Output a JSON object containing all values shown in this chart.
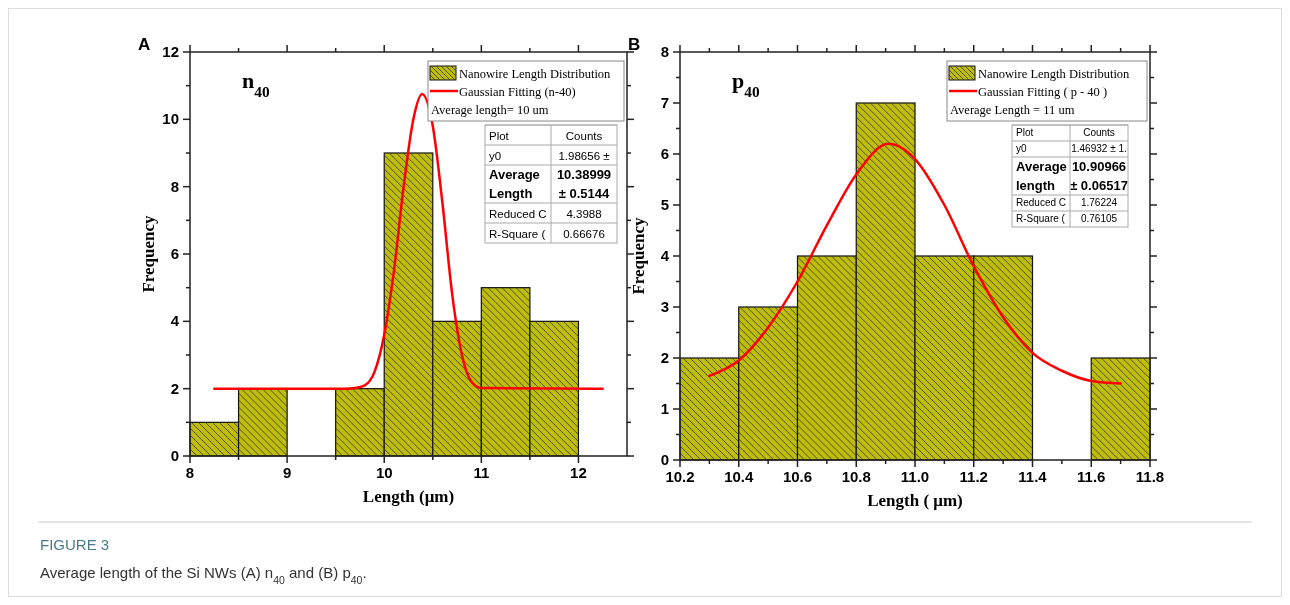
{
  "chart_data": [
    {
      "type": "histogram",
      "title": "A",
      "subtitle": "n$_{40}$",
      "xlabel": "Length (μm)",
      "ylabel": "Frequency",
      "bins": [
        8,
        8.5,
        9,
        9.5,
        10,
        10.5,
        11,
        11.5,
        12
      ],
      "series": [
        {
          "name": "Nanowire Length Distribution",
          "color": "#bdbd0a",
          "values": [
            1,
            2,
            0,
            2,
            9,
            4,
            5,
            4
          ]
        },
        {
          "name": "Gaussian Fitting (n-40)",
          "type": "line",
          "color": "#ff0000",
          "x": [
            8.25,
            9.6,
            9.7,
            9.8,
            9.9,
            10.0,
            10.1,
            10.2,
            10.3,
            10.39,
            10.5,
            10.6,
            10.7,
            10.8,
            10.9,
            11.0,
            12.25
          ],
          "values": [
            2,
            2,
            2.02,
            2.1,
            2.5,
            3.6,
            5.5,
            8.0,
            10.0,
            10.75,
            9.8,
            7.5,
            4.8,
            3.0,
            2.2,
            2.02,
            2
          ]
        }
      ],
      "xlim": [
        8,
        12.5
      ],
      "ylim": [
        0,
        12
      ],
      "xticks": [
        8,
        {
          "value": 8.5,
          "label": null
        },
        9,
        {
          "value": 9.5,
          "label": null
        },
        10,
        {
          "value": 10.5,
          "label": null
        },
        11,
        {
          "value": 11.5,
          "label": null
        },
        12
      ],
      "yticks": [
        0,
        {
          "value": 1,
          "label": null
        },
        2,
        {
          "value": 3,
          "label": null
        },
        4,
        {
          "value": 5,
          "label": null
        },
        6,
        {
          "value": 7,
          "label": null
        },
        8,
        {
          "value": 9,
          "label": null
        },
        10,
        {
          "value": 11,
          "label": null
        },
        12
      ],
      "legend": "top right",
      "annotations": [
        "Average length= 10 um",
        "Plot",
        "Counts",
        "y0",
        "1.98656 ±",
        "Average",
        "10.38999",
        "Length",
        "± 0.5144",
        "Reduced C",
        "4.3988",
        "R-Square (",
        "0.66676"
      ]
    },
    {
      "type": "histogram",
      "title": "B",
      "subtitle": "p$_{40}$",
      "xlabel": "Length ( μm)",
      "ylabel": "Frequency",
      "bins": [
        10.2,
        10.4,
        10.6,
        10.8,
        11.0,
        11.2,
        11.4,
        11.6,
        11.8
      ],
      "series": [
        {
          "name": "Nanowire Length Distribution",
          "color": "#bdbd0a",
          "values": [
            2,
            3,
            4,
            7,
            4,
            4,
            0,
            2
          ]
        },
        {
          "name": "Gaussian Fitting ( p - 40 )",
          "type": "line",
          "color": "#ff0000",
          "x": [
            10.3,
            10.4,
            10.5,
            10.6,
            10.7,
            10.8,
            10.91,
            11.0,
            11.1,
            11.2,
            11.3,
            11.4,
            11.5,
            11.6,
            11.7
          ],
          "values": [
            1.65,
            1.95,
            2.6,
            3.5,
            4.6,
            5.6,
            6.2,
            5.9,
            5.0,
            3.8,
            2.8,
            2.1,
            1.75,
            1.55,
            1.5
          ]
        }
      ],
      "xlim": [
        10.2,
        11.8
      ],
      "ylim": [
        0,
        8
      ],
      "xticks": [
        10.2,
        {
          "value": 10.3,
          "label": null
        },
        10.4,
        {
          "value": 10.5,
          "label": null
        },
        10.6,
        {
          "value": 10.7,
          "label": null
        },
        10.8,
        {
          "value": 10.9,
          "label": null
        },
        {
          "value": 11,
          "label": "11.0"
        },
        {
          "value": 11.1,
          "label": null
        },
        11.2,
        {
          "value": 11.3,
          "label": null
        },
        11.4,
        {
          "value": 11.5,
          "label": null
        },
        11.6,
        {
          "value": 11.7,
          "label": null
        },
        11.8
      ],
      "yticks": [
        0,
        {
          "value": 0.5,
          "label": null
        },
        1,
        {
          "value": 1.5,
          "label": null
        },
        2,
        {
          "value": 2.5,
          "label": null
        },
        3,
        {
          "value": 3.5,
          "label": null
        },
        4,
        {
          "value": 4.5,
          "label": null
        },
        5,
        {
          "value": 5.5,
          "label": null
        },
        6,
        {
          "value": 6.5,
          "label": null
        },
        7,
        {
          "value": 7.5,
          "label": null
        },
        8
      ],
      "legend": "top right",
      "annotations": [
        "Average Length = 11 um",
        "Plot",
        "Counts",
        "y0",
        "1.46932 ± 1.",
        "Average",
        "10.90966",
        "length",
        "± 0.06517",
        "Reduced C",
        "1.76224",
        "R-Square (",
        "0.76105",
        "FIGURE 3",
        "Average length of the Si NWs (A) n$_{40}$ and (B) p$_{40}$."
      ]
    }
  ]
}
